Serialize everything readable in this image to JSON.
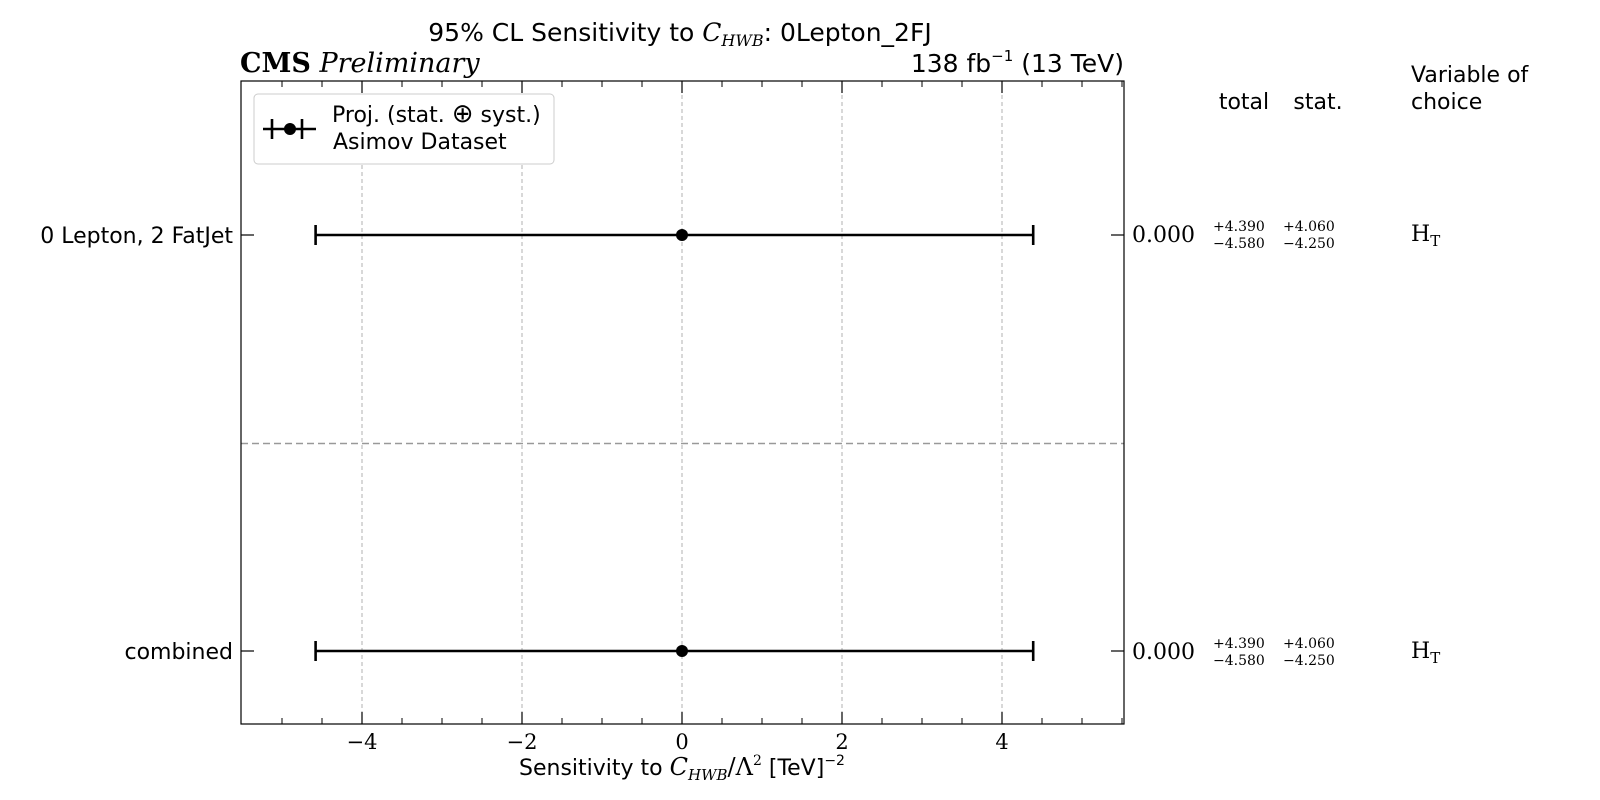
{
  "header": {
    "title_prefix": "95% CL Sensitivity to ",
    "title_symbol": "C",
    "title_symbol_sub": "HWB",
    "title_suffix": ": 0Lepton_2FJ",
    "experiment": "CMS",
    "status": "Preliminary",
    "lumi_value": "138 fb",
    "lumi_exp": "−1",
    "lumi_energy": " (13 TeV)"
  },
  "legend": {
    "line1_prefix": "Proj. (stat. ",
    "line1_symbol": "⊕",
    "line1_suffix": " syst.)",
    "line2": "Asimov Dataset"
  },
  "xaxis": {
    "label_prefix": "Sensitivity to ",
    "label_symbol": "C",
    "label_symbol_sub": "HWB",
    "label_mid": "/Λ",
    "label_sq": "2",
    "label_unit": " [TeV]",
    "label_unit_exp": "−2"
  },
  "columns": {
    "total_header": "total",
    "stat_header": "stat.",
    "variable_header_line1": "Variable of",
    "variable_header_line2": "choice"
  },
  "rows": [
    {
      "label": "0 Lepton, 2 FatJet",
      "central": "0.000",
      "total_up": "+4.390",
      "total_down": "−4.580",
      "stat_up": "+4.060",
      "stat_down": "−4.250",
      "variable": "H",
      "variable_sub": "T"
    },
    {
      "label": "combined",
      "central": "0.000",
      "total_up": "+4.390",
      "total_down": "−4.580",
      "stat_up": "+4.060",
      "stat_down": "−4.250",
      "variable": "H",
      "variable_sub": "T"
    }
  ],
  "chart_data": {
    "type": "errorbar",
    "categories": [
      "0 Lepton, 2 FatJet",
      "combined"
    ],
    "central": [
      0.0,
      0.0
    ],
    "total_up": [
      4.39,
      4.39
    ],
    "total_down": [
      -4.58,
      -4.58
    ],
    "stat_up": [
      4.06,
      4.06
    ],
    "stat_down": [
      -4.25,
      -4.25
    ],
    "xlim": [
      -5.5,
      5.5
    ],
    "xticks": [
      -4,
      -2,
      0,
      2,
      4
    ],
    "xtick_labels": [
      "−4",
      "−2",
      "0",
      "2",
      "4"
    ],
    "grid": true,
    "legend_position": "top-left",
    "separator_after_row": 0
  },
  "colors": {
    "marker": "#000000",
    "grid": "#b0b0b0",
    "separator": "#999999"
  }
}
